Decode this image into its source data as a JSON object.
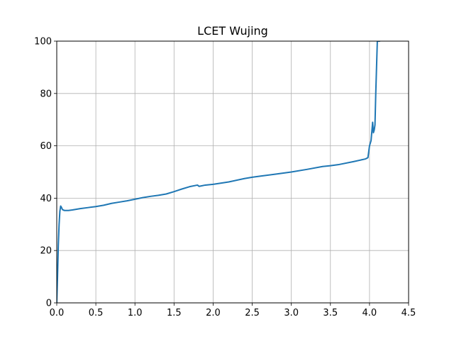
{
  "chart_data": {
    "type": "line",
    "title": "LCET Wujing",
    "xlabel": "",
    "ylabel": "",
    "xlim": [
      0,
      4.5
    ],
    "ylim": [
      0,
      100
    ],
    "xticks": [
      0.0,
      0.5,
      1.0,
      1.5,
      2.0,
      2.5,
      3.0,
      3.5,
      4.0,
      4.5
    ],
    "xtick_labels": [
      "0.0",
      "0.5",
      "1.0",
      "1.5",
      "2.0",
      "2.5",
      "3.0",
      "3.5",
      "4.0",
      "4.5"
    ],
    "yticks": [
      0,
      20,
      40,
      60,
      80,
      100
    ],
    "ytick_labels": [
      "0",
      "20",
      "40",
      "60",
      "80",
      "100"
    ],
    "grid": true,
    "line_color": "#1f77b4",
    "series": [
      {
        "x": [
          0.0,
          0.01,
          0.02,
          0.03,
          0.04,
          0.05,
          0.06,
          0.07,
          0.08,
          0.1,
          0.15,
          0.2,
          0.3,
          0.4,
          0.5,
          0.6,
          0.7,
          0.8,
          0.9,
          1.0,
          1.1,
          1.2,
          1.3,
          1.4,
          1.5,
          1.6,
          1.7,
          1.8,
          1.82,
          1.9,
          2.0,
          2.2,
          2.4,
          2.5,
          2.6,
          2.8,
          3.0,
          3.2,
          3.4,
          3.5,
          3.6,
          3.8,
          3.95,
          3.98,
          4.0,
          4.02,
          4.04,
          4.05,
          4.06,
          4.07,
          4.08,
          4.09,
          4.1,
          4.11,
          4.12,
          4.13
        ],
        "y": [
          0,
          10,
          22,
          30,
          35,
          37,
          36.5,
          35.8,
          35.5,
          35.3,
          35.3,
          35.5,
          36,
          36.4,
          36.8,
          37.3,
          38,
          38.5,
          39,
          39.6,
          40.2,
          40.7,
          41.1,
          41.6,
          42.5,
          43.5,
          44.4,
          45,
          44.5,
          45,
          45.3,
          46.2,
          47.5,
          48,
          48.4,
          49.2,
          50,
          51,
          52.1,
          52.4,
          52.8,
          54,
          55,
          55.5,
          60,
          62,
          69,
          65,
          66,
          68,
          80,
          90,
          100,
          100,
          100,
          100
        ]
      }
    ]
  }
}
